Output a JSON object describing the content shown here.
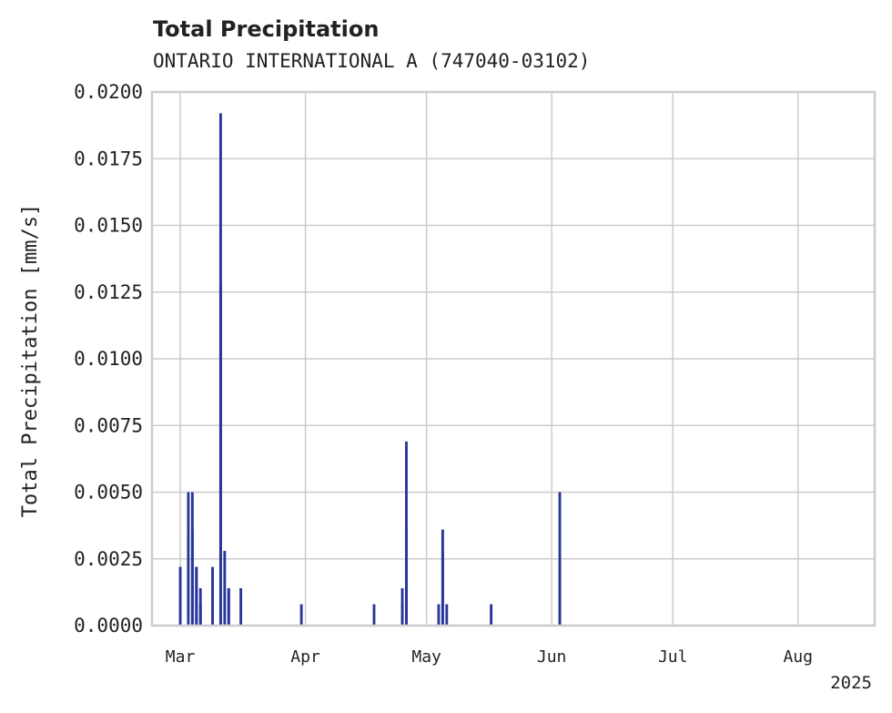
{
  "chart_data": {
    "type": "bar",
    "title": "Total Precipitation",
    "subtitle": "ONTARIO INTERNATIONAL A (747040-03102)",
    "xlabel": "",
    "ylabel": "Total Precipitation [mm/s]",
    "ylim": [
      0,
      0.02
    ],
    "xlim": [
      "2025-02-22",
      "2025-08-20"
    ],
    "x_ticks": [
      {
        "date": "2025-03-01",
        "label": "Mar"
      },
      {
        "date": "2025-04-01",
        "label": "Apr"
      },
      {
        "date": "2025-05-01",
        "label": "May"
      },
      {
        "date": "2025-06-01",
        "label": "Jun"
      },
      {
        "date": "2025-07-01",
        "label": "Jul"
      },
      {
        "date": "2025-08-01",
        "label": "Aug"
      }
    ],
    "x_offset_label": "2025",
    "y_ticks": [
      0.0,
      0.0025,
      0.005,
      0.0075,
      0.01,
      0.0125,
      0.015,
      0.0175,
      0.02
    ],
    "y_tick_labels": [
      "0.0000",
      "0.0025",
      "0.0050",
      "0.0075",
      "0.0100",
      "0.0125",
      "0.0150",
      "0.0175",
      "0.0200"
    ],
    "grid": true,
    "bar_color": "#27359a",
    "series": [
      {
        "points": [
          {
            "x": "2025-03-01",
            "y": 0.0022
          },
          {
            "x": "2025-03-03",
            "y": 0.005
          },
          {
            "x": "2025-03-04",
            "y": 0.005
          },
          {
            "x": "2025-03-04",
            "y": 0.0036
          },
          {
            "x": "2025-03-05",
            "y": 0.0022
          },
          {
            "x": "2025-03-05",
            "y": 0.0022
          },
          {
            "x": "2025-03-06",
            "y": 0.0014
          },
          {
            "x": "2025-03-06",
            "y": 0.0008
          },
          {
            "x": "2025-03-09",
            "y": 0.0022
          },
          {
            "x": "2025-03-11",
            "y": 0.0192
          },
          {
            "x": "2025-03-11",
            "y": 0.0128
          },
          {
            "x": "2025-03-12",
            "y": 0.0028
          },
          {
            "x": "2025-03-13",
            "y": 0.0014
          },
          {
            "x": "2025-03-13",
            "y": 0.0014
          },
          {
            "x": "2025-03-16",
            "y": 0.0014
          },
          {
            "x": "2025-03-31",
            "y": 0.0008
          },
          {
            "x": "2025-04-18",
            "y": 0.0008
          },
          {
            "x": "2025-04-25",
            "y": 0.0008
          },
          {
            "x": "2025-04-25",
            "y": 0.0014
          },
          {
            "x": "2025-04-26",
            "y": 0.0069
          },
          {
            "x": "2025-04-26",
            "y": 0.0036
          },
          {
            "x": "2025-05-04",
            "y": 0.0008
          },
          {
            "x": "2025-05-05",
            "y": 0.0036
          },
          {
            "x": "2025-05-05",
            "y": 0.0028
          },
          {
            "x": "2025-05-06",
            "y": 0.0008
          },
          {
            "x": "2025-05-17",
            "y": 0.0008
          },
          {
            "x": "2025-06-03",
            "y": 0.005
          },
          {
            "x": "2025-06-03",
            "y": 0.0022
          }
        ]
      }
    ]
  }
}
